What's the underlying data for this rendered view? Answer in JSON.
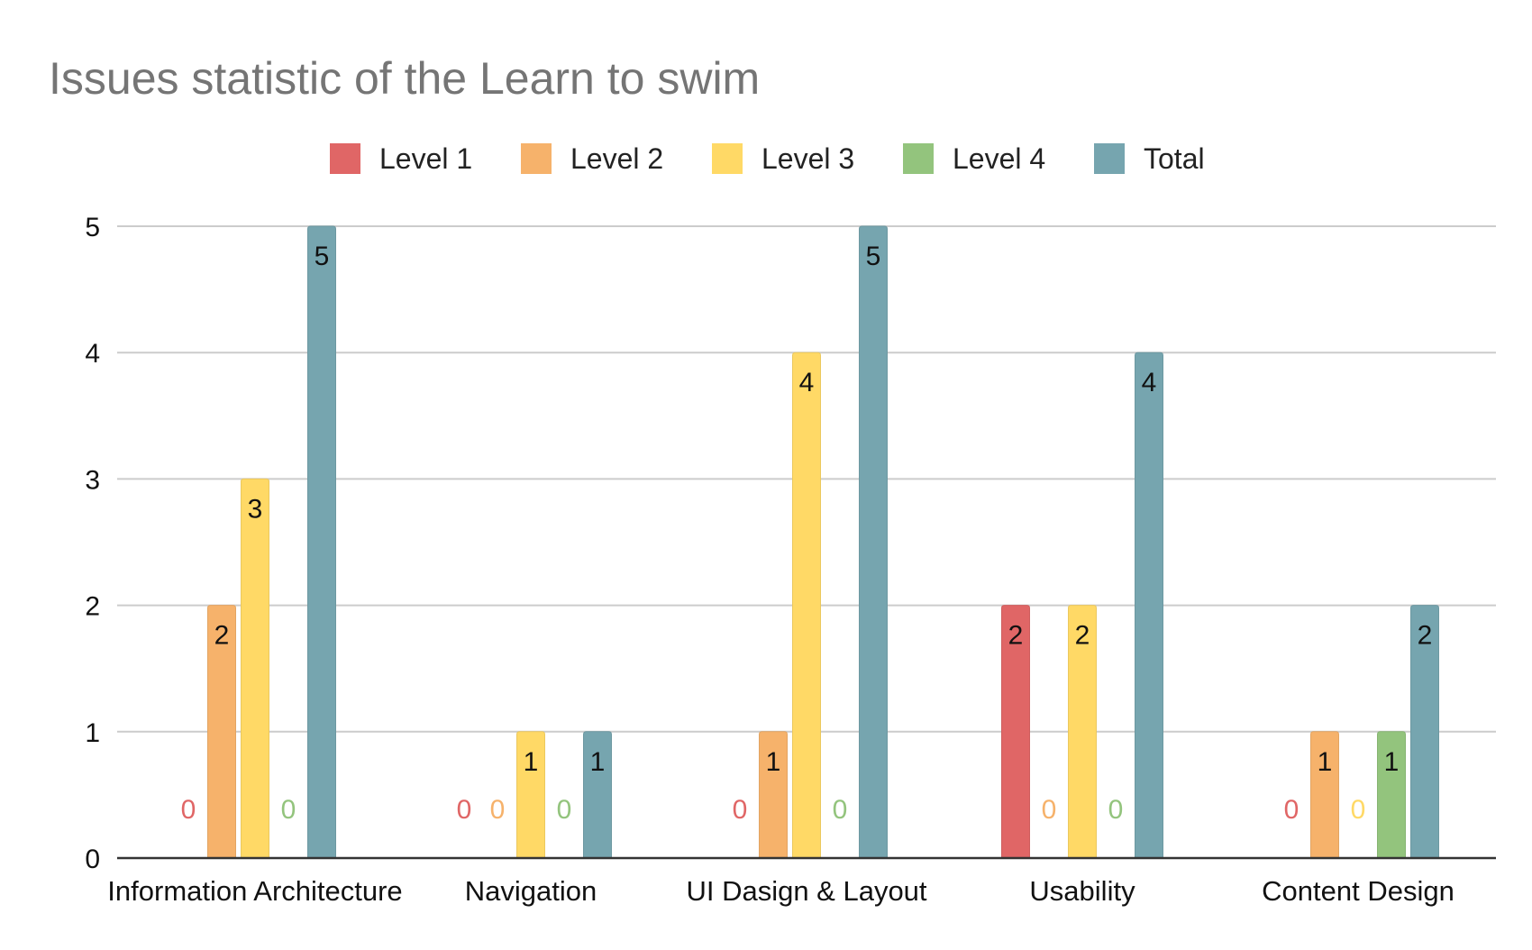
{
  "chart_data": {
    "type": "bar",
    "title": "Issues statistic of the Learn to swim",
    "xlabel": "",
    "ylabel": "",
    "ylim": [
      0,
      5
    ],
    "yticks": [
      0,
      1,
      2,
      3,
      4,
      5
    ],
    "grid": true,
    "legend_position": "top",
    "categories": [
      "Information Architecture",
      "Navigation",
      "UI Dasign & Layout",
      "Usability",
      "Content Design"
    ],
    "series": [
      {
        "name": "Level 1",
        "color": "#e06666",
        "values": [
          0,
          0,
          0,
          2,
          0
        ]
      },
      {
        "name": "Level 2",
        "color": "#f6b26b",
        "values": [
          2,
          0,
          1,
          0,
          1
        ]
      },
      {
        "name": "Level 3",
        "color": "#ffd966",
        "values": [
          3,
          1,
          4,
          2,
          0
        ]
      },
      {
        "name": "Level 4",
        "color": "#93c47d",
        "values": [
          0,
          0,
          0,
          0,
          1
        ]
      },
      {
        "name": "Total",
        "color": "#76a5af",
        "values": [
          5,
          1,
          5,
          4,
          2
        ]
      }
    ]
  }
}
